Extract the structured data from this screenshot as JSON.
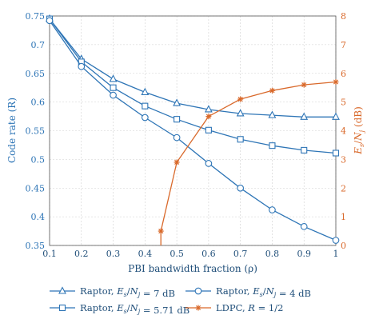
{
  "chart_data": {
    "type": "line",
    "x": [
      0.1,
      0.2,
      0.3,
      0.4,
      0.5,
      0.6,
      0.7,
      0.8,
      0.9,
      1.0
    ],
    "xlabel": "PBI bandwidth fraction (ρ)",
    "xlim": [
      0.1,
      1.0
    ],
    "xticks": [
      "0.1",
      "0.2",
      "0.3",
      "0.4",
      "0.5",
      "0.6",
      "0.7",
      "0.8",
      "0.9",
      "1"
    ],
    "left_axis": {
      "label": "Code rate (R)",
      "ylim": [
        0.35,
        0.75
      ],
      "ticks": [
        "0.35",
        "0.4",
        "0.45",
        "0.5",
        "0.55",
        "0.6",
        "0.65",
        "0.7",
        "0.75"
      ],
      "color": "#2e75b6"
    },
    "right_axis": {
      "label": "Es/Nj (dB)",
      "label_parts": {
        "e": "E",
        "e_sub": "s",
        "slash": "/",
        "n": "N",
        "n_sub": "j",
        "unit": " (dB)"
      },
      "ylim": [
        0,
        8
      ],
      "ticks": [
        "0",
        "1",
        "2",
        "3",
        "4",
        "5",
        "6",
        "7",
        "8"
      ],
      "color": "#d9692b"
    },
    "grid": true,
    "series": [
      {
        "name": "Raptor, Es/Nj = 7 dB",
        "axis": "left",
        "marker": "triangle",
        "color": "#2e75b6",
        "values": [
          0.745,
          0.675,
          0.64,
          0.617,
          0.598,
          0.587,
          0.58,
          0.577,
          0.574,
          0.574
        ]
      },
      {
        "name": "Raptor, Es/Nj = 5.71 dB",
        "axis": "left",
        "marker": "square",
        "color": "#2e75b6",
        "values": [
          0.745,
          0.67,
          0.625,
          0.593,
          0.57,
          0.551,
          0.535,
          0.524,
          0.516,
          0.511
        ]
      },
      {
        "name": "Raptor, Es/Nj = 4 dB",
        "axis": "left",
        "marker": "circle",
        "color": "#2e75b6",
        "values": [
          0.742,
          0.662,
          0.612,
          0.573,
          0.538,
          0.493,
          0.45,
          0.412,
          0.383,
          0.359
        ]
      },
      {
        "name": "LDPC, R = 1/2",
        "axis": "right",
        "marker": "star",
        "color": "#d9692b",
        "x": [
          0.45,
          0.5,
          0.6,
          0.7,
          0.8,
          0.9,
          1.0
        ],
        "values": [
          0.5,
          2.9,
          4.5,
          5.1,
          5.4,
          5.6,
          5.7
        ]
      }
    ],
    "legend": {
      "position": "bottom",
      "items": [
        {
          "prefix": "Raptor, ",
          "e": "E",
          "e_sub": "s",
          "slash": "/",
          "n": "N",
          "n_sub": "j",
          "suffix": " = 7 dB",
          "marker": "triangle"
        },
        {
          "prefix": "Raptor, ",
          "e": "E",
          "e_sub": "s",
          "slash": "/",
          "n": "N",
          "n_sub": "j",
          "suffix": " = 4 dB",
          "marker": "circle"
        },
        {
          "prefix": "Raptor, ",
          "e": "E",
          "e_sub": "s",
          "slash": "/",
          "n": "N",
          "n_sub": "j",
          "suffix": " = 5.71 dB",
          "marker": "square"
        },
        {
          "prefix": "LDPC, ",
          "r": "R",
          "suffix": " = 1/2",
          "marker": "star"
        }
      ]
    }
  }
}
